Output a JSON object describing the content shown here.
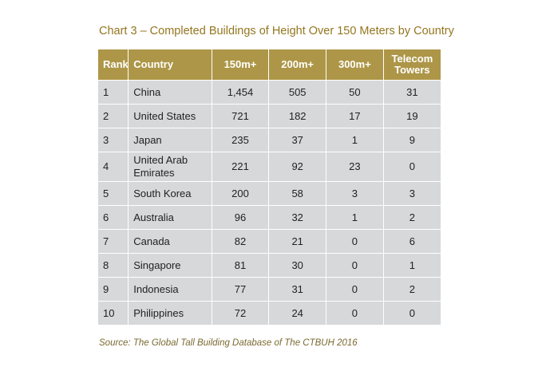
{
  "title": "Chart 3 – Completed Buildings of Height Over 150 Meters by Country",
  "table": {
    "headers": {
      "rank": "Rank",
      "country": "Country",
      "h150": "150m+",
      "h200": "200m+",
      "h300": "300m+",
      "telecom_line1": "Telecom",
      "telecom_line2": "Towers"
    },
    "rows": [
      {
        "rank": "1",
        "country": "China",
        "h150": "1,454",
        "h200": "505",
        "h300": "50",
        "telecom": "31"
      },
      {
        "rank": "2",
        "country": "United States",
        "h150": "721",
        "h200": "182",
        "h300": "17",
        "telecom": "19"
      },
      {
        "rank": "3",
        "country": "Japan",
        "h150": "235",
        "h200": "37",
        "h300": "1",
        "telecom": "9"
      },
      {
        "rank": "4",
        "country_line1": "United Arab",
        "country_line2": "Emirates",
        "h150": "221",
        "h200": "92",
        "h300": "23",
        "telecom": "0"
      },
      {
        "rank": "5",
        "country": "South Korea",
        "h150": "200",
        "h200": "58",
        "h300": "3",
        "telecom": "3"
      },
      {
        "rank": "6",
        "country": "Australia",
        "h150": "96",
        "h200": "32",
        "h300": "1",
        "telecom": "2"
      },
      {
        "rank": "7",
        "country": "Canada",
        "h150": "82",
        "h200": "21",
        "h300": "0",
        "telecom": "6"
      },
      {
        "rank": "8",
        "country": "Singapore",
        "h150": "81",
        "h200": "30",
        "h300": "0",
        "telecom": "1"
      },
      {
        "rank": "9",
        "country": "Indonesia",
        "h150": "77",
        "h200": "31",
        "h300": "0",
        "telecom": "2"
      },
      {
        "rank": "10",
        "country": "Philippines",
        "h150": "72",
        "h200": "24",
        "h300": "0",
        "telecom": "0"
      }
    ]
  },
  "source": "Source: The Global Tall Building Database of The CTBUH 2016",
  "colors": {
    "header_bg": "#ad9647",
    "title": "#94761f",
    "cell_bg": "#d6d8d9"
  }
}
